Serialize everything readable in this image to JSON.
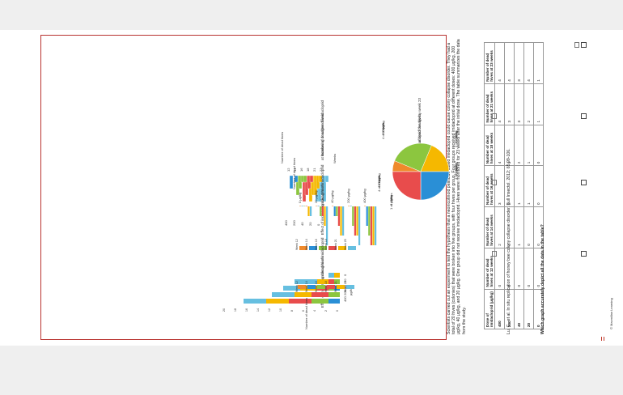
{
  "header": {
    "copyright": "© Macmillan Learning",
    "intro": "Scientists carried out an experiment to test the hypothesis that a neonicotinoid pesticide called imidacloprid could cause colony collapse disorder. They had a total of 20 hives (colonies) that were broken into five groups, with four hives per group. Four groups received imidacloprid at different doses: 400 μg/kg, 200 μg/kg, 40 μg/kg, and 20 μg/kg. One group did not receive imidacloprid. Hives were monitored for 23 weeks after the initial dose. The table summarizes the data from the study.",
    "citation": "Lu, C., et al. In situ replication of honey bee colony collapse disorder. Bull Insectol. 2012; 65:99-106.",
    "question": "Which graph accurately depict all the data in the table?"
  },
  "table": {
    "headers": [
      "Dose of imidacloprid (μg/kg)",
      "Number of dead hives at 12 weeks",
      "Number of dead hives at 14 weeks",
      "Number of dead hives at 16 weeks",
      "Number of dead hives at 18 weeks",
      "Number of dead hives at 21 weeks",
      "Number of dead hives at 23 weeks"
    ],
    "rows": [
      [
        "400",
        "0",
        "2",
        "3",
        "4",
        "4",
        "4"
      ],
      [
        "200",
        "0",
        "0",
        "2",
        "3",
        "3",
        "4"
      ],
      [
        "40",
        "0",
        "1",
        "1",
        "2",
        "3",
        "3"
      ],
      [
        "20",
        "0",
        "0",
        "1",
        "1",
        "2",
        "4"
      ],
      [
        "0",
        "0",
        "0",
        "0",
        "0",
        "1",
        "1"
      ]
    ]
  },
  "options": [
    {
      "id": "pie",
      "title": "Number of dead bee hives\nat each imidacloprid dosage by week 23",
      "labels": [
        "1 of 4 hives\n0 μg/kg\n25%",
        "4 of 4 hives\n20 μg/kg\n100%",
        "3 of 4 hives\n40 μg/kg\n75%",
        "4 of 4 hives\n200 μg/kg\n100%",
        "4 of 4 hives\n400 μg/kg\n100%"
      ]
    },
    {
      "id": "3d-bar",
      "title": "Number of dead bee hives\nat increasing dosages of imidacloprid",
      "ylabel": "Number of dead hives",
      "xlabel": "Weeks",
      "doses": [
        "400",
        "200",
        "40",
        "20",
        "0"
      ],
      "dose_unit": "μg/kg",
      "weeks": [
        "12",
        "14",
        "16",
        "18",
        "21",
        "23"
      ]
    },
    {
      "id": "grouped-bar",
      "title": "Effect of increasing dosages of imidacloprid\non dead hives",
      "ylabel": "Number of dead hives",
      "categories": [
        "0 μg/kg",
        "20 μg/kg",
        "40 μg/kg",
        "200 μg/kg",
        "400 μg/kg"
      ],
      "legend": [
        "Week 12",
        "Week 14",
        "Week 16",
        "Week 18",
        "Week 21",
        "Week 23"
      ]
    },
    {
      "id": "stacked-bar",
      "title": "Effect of increasing dosages of imidacloprid\non dead hives",
      "xlabel": "Number of dead hives",
      "ylabel": "μg/kg",
      "categories": [
        "400",
        "200",
        "40",
        "20",
        "0"
      ],
      "xticks": [
        "0",
        "2",
        "4",
        "6",
        "8",
        "10",
        "12",
        "14",
        "16",
        "18",
        "20"
      ],
      "legend": [
        "Week 12",
        "Week 14",
        "Week 16",
        "Week 18",
        "Week 21",
        "Week 23"
      ]
    }
  ],
  "colors": {
    "frame": "#b8322f",
    "wk12": "#ef8a2b",
    "wk14": "#2a8fd6",
    "wk16": "#8cc63f",
    "wk18": "#e84c4c",
    "wk21": "#f5b800",
    "wk23": "#66bfe0"
  },
  "chart_data": [
    {
      "type": "pie",
      "title": "Number of dead bee hives at each imidacloprid dosage by week 23",
      "categories": [
        "0 μg/kg",
        "20 μg/kg",
        "40 μg/kg",
        "200 μg/kg",
        "400 μg/kg"
      ],
      "values": [
        1,
        4,
        3,
        4,
        4
      ]
    },
    {
      "type": "bar",
      "title": "Effect of increasing dosages of imidacloprid on dead hives",
      "categories": [
        "0 μg/kg",
        "20 μg/kg",
        "40 μg/kg",
        "200 μg/kg",
        "400 μg/kg"
      ],
      "series": [
        {
          "name": "Week 12",
          "values": [
            0,
            0,
            0,
            0,
            0
          ]
        },
        {
          "name": "Week 14",
          "values": [
            0,
            0,
            1,
            0,
            2
          ]
        },
        {
          "name": "Week 16",
          "values": [
            0,
            1,
            1,
            2,
            3
          ]
        },
        {
          "name": "Week 18",
          "values": [
            0,
            1,
            2,
            3,
            4
          ]
        },
        {
          "name": "Week 21",
          "values": [
            1,
            2,
            3,
            3,
            4
          ]
        },
        {
          "name": "Week 23",
          "values": [
            1,
            4,
            3,
            4,
            4
          ]
        }
      ],
      "ylim": [
        0,
        4
      ]
    },
    {
      "type": "bar",
      "title": "Effect of increasing dosages of imidacloprid on dead hives",
      "categories": [
        "400",
        "200",
        "40",
        "20",
        "0"
      ],
      "series": [
        {
          "name": "Week 12",
          "values": [
            0,
            0,
            0,
            0,
            0
          ]
        },
        {
          "name": "Week 14",
          "values": [
            2,
            0,
            1,
            0,
            0
          ]
        },
        {
          "name": "Week 16",
          "values": [
            3,
            2,
            1,
            1,
            0
          ]
        },
        {
          "name": "Week 18",
          "values": [
            4,
            3,
            2,
            1,
            0
          ]
        },
        {
          "name": "Week 21",
          "values": [
            4,
            3,
            3,
            2,
            1
          ]
        },
        {
          "name": "Week 23",
          "values": [
            4,
            4,
            3,
            4,
            1
          ]
        }
      ],
      "xlabel": "Number of dead hives",
      "ylabel": "μg/kg",
      "xlim": [
        0,
        20
      ]
    }
  ]
}
